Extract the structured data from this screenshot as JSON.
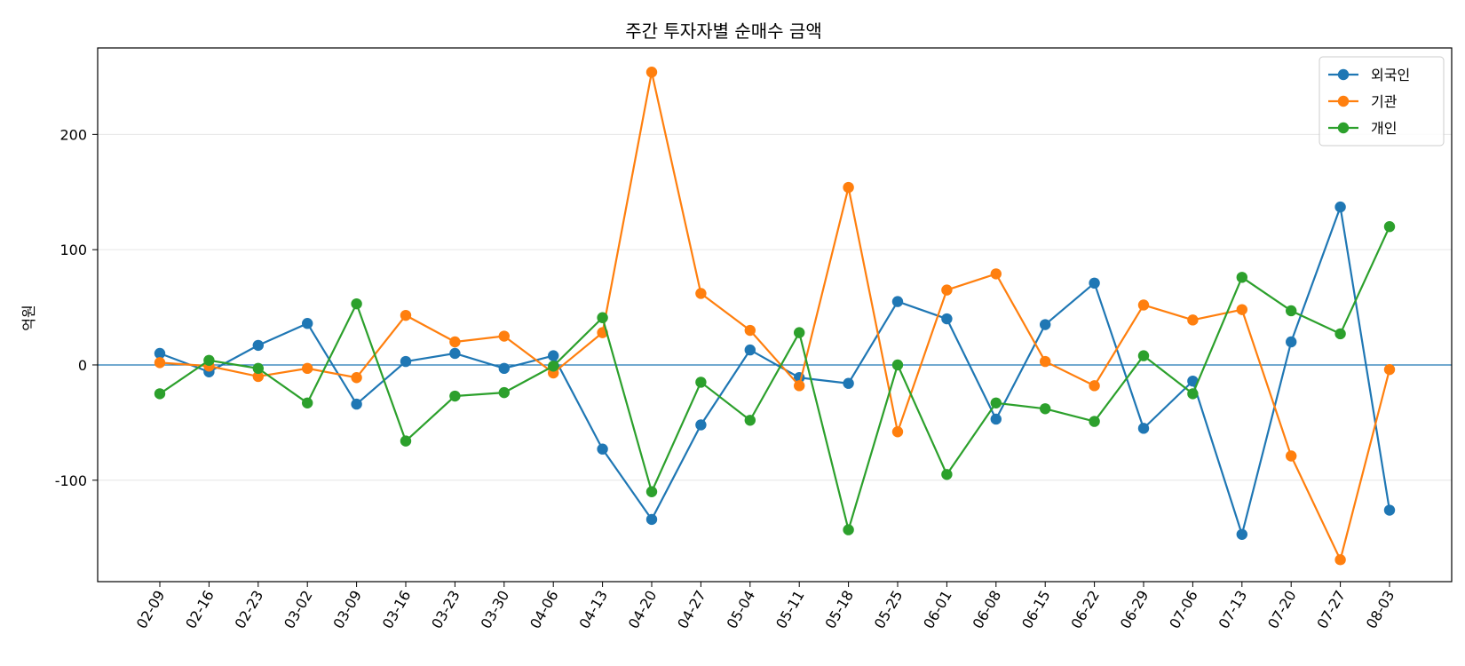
{
  "chart_data": {
    "type": "line",
    "title": "주간 투자자별 순매수 금액",
    "xlabel": "",
    "ylabel": "억원",
    "ylim": [
      -188,
      275
    ],
    "yticks": [
      -100,
      0,
      100,
      200
    ],
    "grid": "horizontal",
    "legend_position": "top-right",
    "zero_line": true,
    "categories": [
      "02-09",
      "02-16",
      "02-23",
      "03-02",
      "03-09",
      "03-16",
      "03-23",
      "03-30",
      "04-06",
      "04-13",
      "04-20",
      "04-27",
      "05-04",
      "05-11",
      "05-18",
      "05-25",
      "06-01",
      "06-08",
      "06-15",
      "06-22",
      "06-29",
      "07-06",
      "07-13",
      "07-20",
      "07-27",
      "08-03"
    ],
    "series": [
      {
        "name": "외국인",
        "color": "#1f77b4",
        "values": [
          10,
          -6,
          17,
          36,
          -34,
          3,
          10,
          -3,
          8,
          -73,
          -134,
          -52,
          13,
          -11,
          -16,
          55,
          40,
          -47,
          35,
          71,
          -55,
          -14,
          -147,
          20,
          137,
          -126
        ]
      },
      {
        "name": "기관",
        "color": "#ff7f0e",
        "values": [
          2,
          -1,
          -10,
          -3,
          -11,
          43,
          20,
          25,
          -7,
          28,
          254,
          62,
          30,
          -18,
          154,
          -58,
          65,
          79,
          3,
          -18,
          52,
          39,
          48,
          -79,
          -169,
          -4
        ]
      },
      {
        "name": "개인",
        "color": "#2ca02c",
        "values": [
          -25,
          4,
          -3,
          -33,
          53,
          -66,
          -27,
          -24,
          -1,
          41,
          -110,
          -15,
          -48,
          28,
          -143,
          0,
          -95,
          -33,
          -38,
          -49,
          8,
          -25,
          76,
          47,
          27,
          120
        ]
      }
    ]
  }
}
